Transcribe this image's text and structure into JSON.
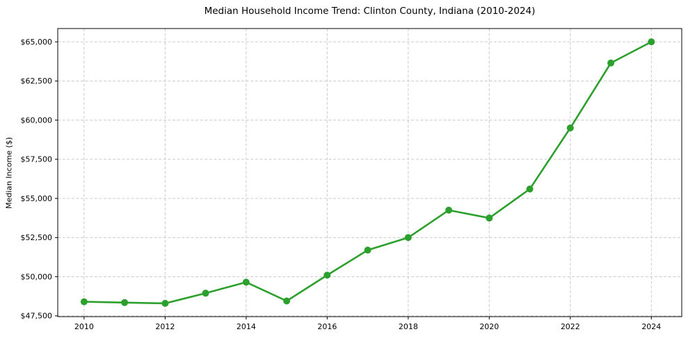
{
  "figure": {
    "background": "#ffffff"
  },
  "chart_data": {
    "type": "line",
    "title": "Median Household Income Trend: Clinton County, Indiana (2010-2024)",
    "xlabel": "",
    "ylabel": "Median Income ($)",
    "series_name": "Median Household Income",
    "x": [
      2010,
      2011,
      2012,
      2013,
      2014,
      2015,
      2016,
      2017,
      2018,
      2019,
      2020,
      2021,
      2022,
      2023,
      2024
    ],
    "values": [
      48400,
      48350,
      48300,
      48950,
      49650,
      48450,
      50100,
      51700,
      52500,
      54250,
      53750,
      55600,
      59500,
      63650,
      65000
    ],
    "line_color": "#2ca02c",
    "marker": "circle",
    "marker_color": "#2ca02c",
    "grid": true,
    "grid_color": "#c9c9c9",
    "grid_style": "dashed",
    "legend_position": "none",
    "xlim": [
      2009.35,
      2024.75
    ],
    "ylim": [
      47450,
      65850
    ],
    "xticks": [
      2010,
      2012,
      2014,
      2016,
      2018,
      2020,
      2022,
      2024
    ],
    "xtick_labels": [
      "2010",
      "2012",
      "2014",
      "2016",
      "2018",
      "2020",
      "2022",
      "2024"
    ],
    "yticks": [
      47500,
      50000,
      52500,
      55000,
      57500,
      60000,
      62500,
      65000
    ],
    "ytick_labels": [
      "$47,500",
      "$50,000",
      "$52,500",
      "$55,000",
      "$57,500",
      "$60,000",
      "$62,500",
      "$65,000"
    ],
    "spine_color": "#000000",
    "text_color": "#000000"
  }
}
